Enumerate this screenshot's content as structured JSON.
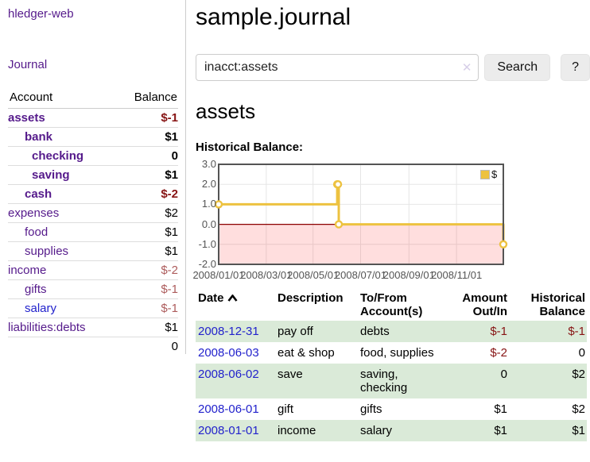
{
  "sidebar": {
    "brand": "hledger-web",
    "nav_journal": "Journal",
    "accounts_table": {
      "headers": {
        "account": "Account",
        "balance": "Balance"
      },
      "rows": [
        {
          "account": "assets",
          "balance": "$-1"
        },
        {
          "account": "bank",
          "balance": "$1"
        },
        {
          "account": "checking",
          "balance": "0"
        },
        {
          "account": "saving",
          "balance": "$1"
        },
        {
          "account": "cash",
          "balance": "$-2"
        },
        {
          "account": "expenses",
          "balance": "$2"
        },
        {
          "account": "food",
          "balance": "$1"
        },
        {
          "account": "supplies",
          "balance": "$1"
        },
        {
          "account": "income",
          "balance": "$-2"
        },
        {
          "account": "gifts",
          "balance": "$-1"
        },
        {
          "account": "salary",
          "balance": "$-1"
        },
        {
          "account": "liabilities:debts",
          "balance": "$1"
        }
      ],
      "total": "0"
    }
  },
  "main": {
    "title": "sample.journal",
    "search": {
      "value": "inacct:assets",
      "clear_icon": "✕",
      "button_label": "Search",
      "help_label": "?"
    },
    "account_heading": "assets",
    "chart_label": "Historical Balance:"
  },
  "chart_data": {
    "type": "line",
    "title": "Historical Balance",
    "step": true,
    "series": [
      {
        "name": "$",
        "color": "#edc240",
        "points": [
          {
            "date": "2008-01-01",
            "x": 0,
            "y": 1
          },
          {
            "date": "2008-06-01",
            "x": 152,
            "y": 2
          },
          {
            "date": "2008-06-02",
            "x": 153,
            "y": 2
          },
          {
            "date": "2008-06-03",
            "x": 154,
            "y": 0
          },
          {
            "date": "2008-12-31",
            "x": 365,
            "y": -1
          }
        ]
      }
    ],
    "x_ticks": [
      {
        "x": 0,
        "label": "2008/01/01"
      },
      {
        "x": 61,
        "label": "2008/03/01"
      },
      {
        "x": 121,
        "label": "2008/05/01"
      },
      {
        "x": 182,
        "label": "2008/07/01"
      },
      {
        "x": 244,
        "label": "2008/09/01"
      },
      {
        "x": 305,
        "label": "2008/11/01"
      }
    ],
    "y_ticks": [
      3.0,
      2.0,
      1.0,
      0.0,
      -1.0,
      -2.0
    ],
    "xlim": [
      0,
      365
    ],
    "ylim": [
      -2,
      3
    ],
    "grid": true,
    "negative_region_color": "rgba(255,0,0,0.13)",
    "zero_line_color": "#8b0000",
    "legend_position": "top-right"
  },
  "register": {
    "headers": {
      "date": "Date",
      "description": "Description",
      "accounts": "To/From Account(s)",
      "amount": "Amount Out/In",
      "balance": "Historical Balance"
    },
    "rows": [
      {
        "date": "2008-12-31",
        "description": "pay off",
        "accounts": "debts",
        "amount": "$-1",
        "balance": "$-1"
      },
      {
        "date": "2008-06-03",
        "description": "eat & shop",
        "accounts": "food, supplies",
        "amount": "$-2",
        "balance": "0"
      },
      {
        "date": "2008-06-02",
        "description": "save",
        "accounts": "saving, checking",
        "amount": "0",
        "balance": "$2"
      },
      {
        "date": "2008-06-01",
        "description": "gift",
        "accounts": "gifts",
        "amount": "$1",
        "balance": "$2"
      },
      {
        "date": "2008-01-01",
        "description": "income",
        "accounts": "salary",
        "amount": "$1",
        "balance": "$1"
      }
    ]
  }
}
